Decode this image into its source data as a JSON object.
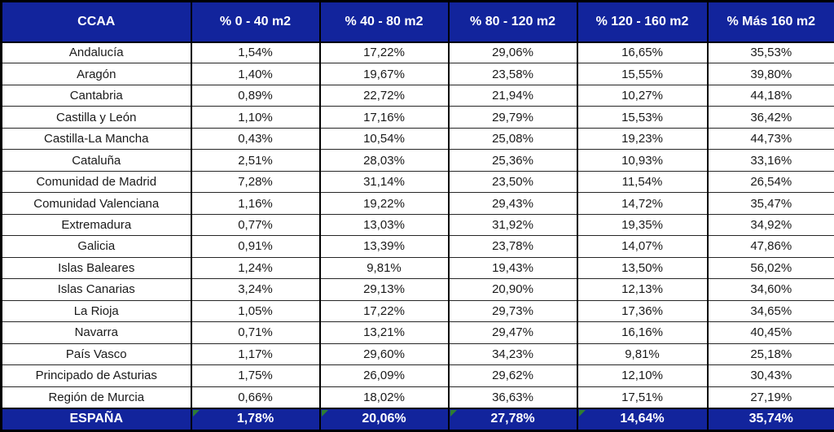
{
  "table": {
    "columns": [
      "CCAA",
      "% 0 - 40 m2",
      "% 40 - 80 m2",
      "% 80 - 120 m2",
      "% 120 - 160 m2",
      "% Más 160 m2"
    ],
    "rows": [
      {
        "name": "Andalucía",
        "values": [
          "1,54%",
          "17,22%",
          "29,06%",
          "16,65%",
          "35,53%"
        ]
      },
      {
        "name": "Aragón",
        "values": [
          "1,40%",
          "19,67%",
          "23,58%",
          "15,55%",
          "39,80%"
        ]
      },
      {
        "name": "Cantabria",
        "values": [
          "0,89%",
          "22,72%",
          "21,94%",
          "10,27%",
          "44,18%"
        ]
      },
      {
        "name": "Castilla y León",
        "values": [
          "1,10%",
          "17,16%",
          "29,79%",
          "15,53%",
          "36,42%"
        ]
      },
      {
        "name": "Castilla-La Mancha",
        "values": [
          "0,43%",
          "10,54%",
          "25,08%",
          "19,23%",
          "44,73%"
        ]
      },
      {
        "name": "Cataluña",
        "values": [
          "2,51%",
          "28,03%",
          "25,36%",
          "10,93%",
          "33,16%"
        ]
      },
      {
        "name": "Comunidad de Madrid",
        "values": [
          "7,28%",
          "31,14%",
          "23,50%",
          "11,54%",
          "26,54%"
        ]
      },
      {
        "name": "Comunidad Valenciana",
        "values": [
          "1,16%",
          "19,22%",
          "29,43%",
          "14,72%",
          "35,47%"
        ]
      },
      {
        "name": "Extremadura",
        "values": [
          "0,77%",
          "13,03%",
          "31,92%",
          "19,35%",
          "34,92%"
        ]
      },
      {
        "name": "Galicia",
        "values": [
          "0,91%",
          "13,39%",
          "23,78%",
          "14,07%",
          "47,86%"
        ]
      },
      {
        "name": "Islas Baleares",
        "values": [
          "1,24%",
          "9,81%",
          "19,43%",
          "13,50%",
          "56,02%"
        ]
      },
      {
        "name": "Islas Canarias",
        "values": [
          "3,24%",
          "29,13%",
          "20,90%",
          "12,13%",
          "34,60%"
        ]
      },
      {
        "name": "La Rioja",
        "values": [
          "1,05%",
          "17,22%",
          "29,73%",
          "17,36%",
          "34,65%"
        ]
      },
      {
        "name": "Navarra",
        "values": [
          "0,71%",
          "13,21%",
          "29,47%",
          "16,16%",
          "40,45%"
        ]
      },
      {
        "name": "País Vasco",
        "values": [
          "1,17%",
          "29,60%",
          "34,23%",
          "9,81%",
          "25,18%"
        ]
      },
      {
        "name": "Principado de Asturias",
        "values": [
          "1,75%",
          "26,09%",
          "29,62%",
          "12,10%",
          "30,43%"
        ]
      },
      {
        "name": "Región de Murcia",
        "values": [
          "0,66%",
          "18,02%",
          "36,63%",
          "17,51%",
          "27,19%"
        ]
      }
    ],
    "footer": {
      "name": "ESPAÑA",
      "values": [
        "1,78%",
        "20,06%",
        "27,78%",
        "14,64%",
        "35,74%"
      ],
      "flagged_value_indexes": [
        0,
        1,
        2,
        3
      ]
    }
  },
  "colors": {
    "header_bg": "#12249C",
    "header_text": "#FFFFFF",
    "body_text": "#1A1A1A",
    "border": "#000000",
    "flag_triangle": "#2E7D32"
  },
  "chart_data": {
    "type": "table",
    "title": "",
    "columns": [
      "CCAA",
      "% 0 - 40 m2",
      "% 40 - 80 m2",
      "% 80 - 120 m2",
      "% 120 - 160 m2",
      "% Más 160 m2"
    ],
    "rows": [
      [
        "Andalucía",
        1.54,
        17.22,
        29.06,
        16.65,
        35.53
      ],
      [
        "Aragón",
        1.4,
        19.67,
        23.58,
        15.55,
        39.8
      ],
      [
        "Cantabria",
        0.89,
        22.72,
        21.94,
        10.27,
        44.18
      ],
      [
        "Castilla y León",
        1.1,
        17.16,
        29.79,
        15.53,
        36.42
      ],
      [
        "Castilla-La Mancha",
        0.43,
        10.54,
        25.08,
        19.23,
        44.73
      ],
      [
        "Cataluña",
        2.51,
        28.03,
        25.36,
        10.93,
        33.16
      ],
      [
        "Comunidad de Madrid",
        7.28,
        31.14,
        23.5,
        11.54,
        26.54
      ],
      [
        "Comunidad Valenciana",
        1.16,
        19.22,
        29.43,
        14.72,
        35.47
      ],
      [
        "Extremadura",
        0.77,
        13.03,
        31.92,
        19.35,
        34.92
      ],
      [
        "Galicia",
        0.91,
        13.39,
        23.78,
        14.07,
        47.86
      ],
      [
        "Islas Baleares",
        1.24,
        9.81,
        19.43,
        13.5,
        56.02
      ],
      [
        "Islas Canarias",
        3.24,
        29.13,
        20.9,
        12.13,
        34.6
      ],
      [
        "La Rioja",
        1.05,
        17.22,
        29.73,
        17.36,
        34.65
      ],
      [
        "Navarra",
        0.71,
        13.21,
        29.47,
        16.16,
        40.45
      ],
      [
        "País Vasco",
        1.17,
        29.6,
        34.23,
        9.81,
        25.18
      ],
      [
        "Principado de Asturias",
        1.75,
        26.09,
        29.62,
        12.1,
        30.43
      ],
      [
        "Región de Murcia",
        0.66,
        18.02,
        36.63,
        17.51,
        27.19
      ],
      [
        "ESPAÑA",
        1.78,
        20.06,
        27.78,
        14.64,
        35.74
      ]
    ],
    "units": "percent"
  }
}
